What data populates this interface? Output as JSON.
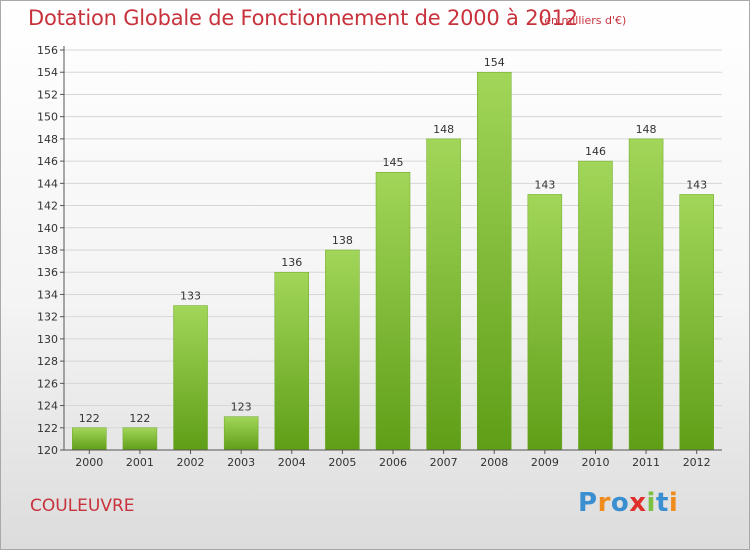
{
  "chart_data": {
    "type": "bar",
    "title": "Dotation Globale de Fonctionnement de 2000 à 2012",
    "subtitle": "(en milliers d'€)",
    "categories": [
      "2000",
      "2001",
      "2002",
      "2003",
      "2004",
      "2005",
      "2006",
      "2007",
      "2008",
      "2009",
      "2010",
      "2011",
      "2012"
    ],
    "values": [
      122,
      122,
      133,
      123,
      136,
      138,
      145,
      148,
      154,
      143,
      146,
      148,
      143
    ],
    "ylim": [
      120,
      156
    ],
    "yticks": [
      120,
      122,
      124,
      126,
      128,
      130,
      132,
      134,
      136,
      138,
      140,
      142,
      144,
      146,
      148,
      150,
      152,
      154,
      156
    ],
    "grid": true,
    "bar_color": "#7fbf2e"
  },
  "footer": {
    "place": "COULEUVRE"
  },
  "logo": {
    "letters": [
      "P",
      "r",
      "o",
      "x",
      "i",
      "t",
      "i"
    ],
    "colors": [
      "#3a8fd0",
      "#f08c1e",
      "#3a8fd0",
      "#e0302a",
      "#7cc242",
      "#3a8fd0",
      "#f08c1e"
    ]
  }
}
